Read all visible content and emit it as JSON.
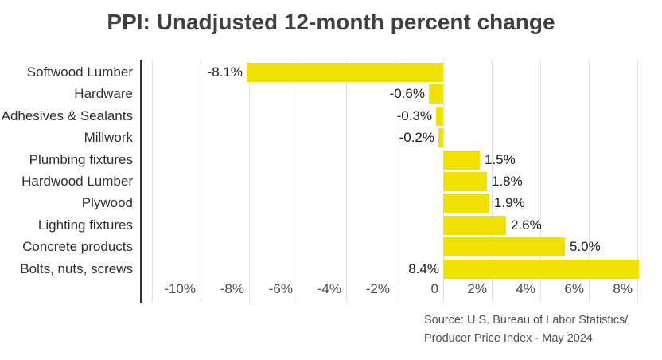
{
  "title": "PPI: Unadjusted 12-month percent change",
  "source": {
    "line1": "Source: U.S. Bureau of Labor Statistics/",
    "line2": "Producer Price Index - May 2024"
  },
  "colors": {
    "bar": "#F1E104",
    "grid": "#E2E2E2",
    "axis": "#333333",
    "title_text": "#414141",
    "category_text": "#2E2E2E",
    "tick_text": "#4B4B4B",
    "value_text": "#1C1C1C",
    "source_text": "#4F4F4F",
    "background": "#FFFFFF"
  },
  "chart_data": {
    "type": "bar",
    "orientation": "horizontal",
    "title": "PPI: Unadjusted 12-month percent change",
    "categories": [
      "Softwood Lumber",
      "Hardware",
      "Adhesives & Sealants",
      "Millwork",
      "Plumbing fixtures",
      "Hardwood Lumber",
      "Plywood",
      "Lighting fixtures",
      "Concrete products",
      "Bolts, nuts, screws"
    ],
    "values": [
      -8.1,
      -0.6,
      -0.3,
      -0.2,
      1.5,
      1.8,
      1.9,
      2.6,
      5.0,
      8.4
    ],
    "value_labels": [
      "-8.1%",
      "-0.6%",
      "-0.3%",
      "-0.2%",
      "1.5%",
      "1.8%",
      "1.9%",
      "2.6%",
      "5.0%",
      "8.4%"
    ],
    "x_tick_values": [
      -10,
      -8,
      -6,
      -4,
      -2,
      0,
      2,
      4,
      6,
      8
    ],
    "x_tick_labels": [
      "-10%",
      "-8%",
      "-6%",
      "-4%",
      "-2%",
      "0",
      "2%",
      "4%",
      "6%",
      "8%"
    ],
    "x_gridline_values": [
      -12,
      -10,
      -8,
      -6,
      -4,
      -2,
      0,
      2,
      4,
      6,
      8
    ],
    "xlim": [
      -12.5,
      8.1
    ],
    "grid": "vertical-only",
    "legend": "none",
    "unit": "12-month percent change",
    "source": "U.S. Bureau of Labor Statistics / Producer Price Index - May 2024"
  }
}
